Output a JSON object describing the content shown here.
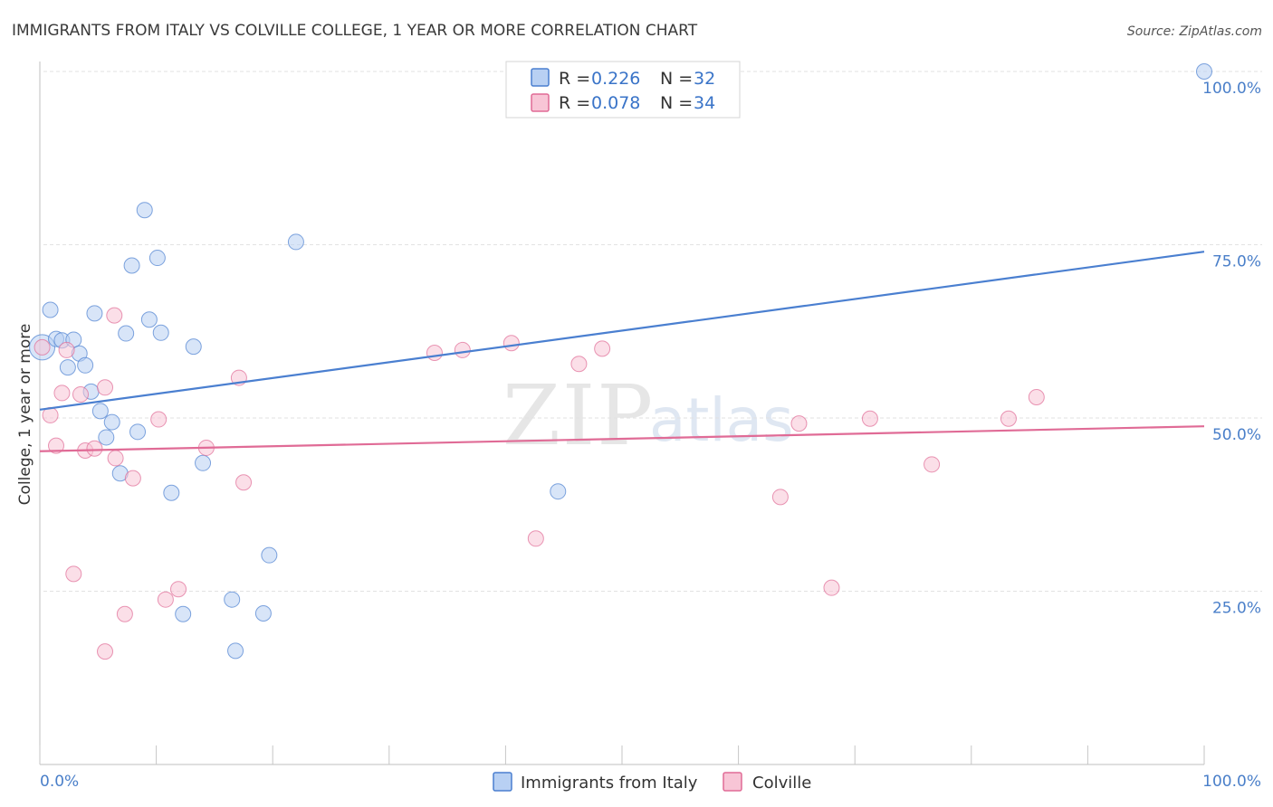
{
  "chart_data": {
    "type": "scatter",
    "title": "IMMIGRANTS FROM ITALY VS COLVILLE COLLEGE, 1 YEAR OR MORE CORRELATION CHART",
    "source": "Source: ZipAtlas.com",
    "xlabel": "",
    "ylabel": "College, 1 year or more",
    "xlim": [
      0,
      100
    ],
    "ylim": [
      0,
      102
    ],
    "x_tick_labels": [
      "0.0%",
      "100.0%"
    ],
    "y_ticks": [
      {
        "value": 25,
        "label": "25.0%"
      },
      {
        "value": 50,
        "label": "50.0%"
      },
      {
        "value": 75,
        "label": "75.0%"
      },
      {
        "value": 100,
        "label": "100.0%"
      }
    ],
    "grid": true,
    "legend_position": "top-center",
    "watermark": {
      "part1": "ZIP",
      "part2": "atlas"
    },
    "series": [
      {
        "name": "Immigrants from Italy",
        "color": "#4a7fd0",
        "fill": "#b8d0f3",
        "r_label": "R =",
        "r_value": "0.226",
        "n_label": "N =",
        "n_value": "32",
        "trend": {
          "y_at_0": 51.2,
          "y_at_100": 74.0
        },
        "points": [
          {
            "x": 0.2,
            "y": 60.2
          },
          {
            "x": 0.9,
            "y": 65.6
          },
          {
            "x": 1.4,
            "y": 61.4
          },
          {
            "x": 1.9,
            "y": 61.2
          },
          {
            "x": 2.4,
            "y": 57.3
          },
          {
            "x": 2.9,
            "y": 61.3
          },
          {
            "x": 3.4,
            "y": 59.3
          },
          {
            "x": 3.9,
            "y": 57.6
          },
          {
            "x": 4.4,
            "y": 53.8
          },
          {
            "x": 4.7,
            "y": 65.1
          },
          {
            "x": 5.2,
            "y": 51.0
          },
          {
            "x": 5.7,
            "y": 47.2
          },
          {
            "x": 6.2,
            "y": 49.4
          },
          {
            "x": 6.9,
            "y": 42.0
          },
          {
            "x": 7.4,
            "y": 62.2
          },
          {
            "x": 7.9,
            "y": 72.0
          },
          {
            "x": 8.4,
            "y": 48.0
          },
          {
            "x": 9.0,
            "y": 80.0
          },
          {
            "x": 9.4,
            "y": 64.2
          },
          {
            "x": 10.1,
            "y": 73.1
          },
          {
            "x": 10.4,
            "y": 62.3
          },
          {
            "x": 11.3,
            "y": 39.2
          },
          {
            "x": 12.3,
            "y": 21.7
          },
          {
            "x": 13.2,
            "y": 60.3
          },
          {
            "x": 14.0,
            "y": 43.5
          },
          {
            "x": 16.5,
            "y": 23.8
          },
          {
            "x": 16.8,
            "y": 16.4
          },
          {
            "x": 19.2,
            "y": 21.8
          },
          {
            "x": 19.7,
            "y": 30.2
          },
          {
            "x": 22.0,
            "y": 75.4
          },
          {
            "x": 44.5,
            "y": 39.4
          },
          {
            "x": 100.0,
            "y": 100.0
          }
        ]
      },
      {
        "name": "Colville",
        "color": "#e06b96",
        "fill": "#f8c5d6",
        "r_label": "R =",
        "r_value": "0.078",
        "n_label": "N =",
        "n_value": "34",
        "trend": {
          "y_at_0": 45.2,
          "y_at_100": 48.8
        },
        "points": [
          {
            "x": 0.2,
            "y": 60.2
          },
          {
            "x": 0.9,
            "y": 50.4
          },
          {
            "x": 1.4,
            "y": 46.0
          },
          {
            "x": 1.9,
            "y": 53.6
          },
          {
            "x": 2.3,
            "y": 59.8
          },
          {
            "x": 2.9,
            "y": 27.5
          },
          {
            "x": 3.5,
            "y": 53.4
          },
          {
            "x": 3.9,
            "y": 45.3
          },
          {
            "x": 4.7,
            "y": 45.6
          },
          {
            "x": 5.6,
            "y": 54.4
          },
          {
            "x": 5.6,
            "y": 16.3
          },
          {
            "x": 6.4,
            "y": 64.8
          },
          {
            "x": 6.5,
            "y": 44.2
          },
          {
            "x": 7.3,
            "y": 21.7
          },
          {
            "x": 8.0,
            "y": 41.3
          },
          {
            "x": 10.2,
            "y": 49.8
          },
          {
            "x": 10.8,
            "y": 23.8
          },
          {
            "x": 11.9,
            "y": 25.3
          },
          {
            "x": 14.3,
            "y": 45.7
          },
          {
            "x": 17.1,
            "y": 55.8
          },
          {
            "x": 17.5,
            "y": 40.7
          },
          {
            "x": 33.9,
            "y": 59.4
          },
          {
            "x": 36.3,
            "y": 59.8
          },
          {
            "x": 40.5,
            "y": 60.8
          },
          {
            "x": 42.6,
            "y": 32.6
          },
          {
            "x": 46.3,
            "y": 57.8
          },
          {
            "x": 48.3,
            "y": 60.0
          },
          {
            "x": 63.6,
            "y": 38.6
          },
          {
            "x": 65.2,
            "y": 49.2
          },
          {
            "x": 68.0,
            "y": 25.5
          },
          {
            "x": 71.3,
            "y": 49.9
          },
          {
            "x": 76.6,
            "y": 43.3
          },
          {
            "x": 83.2,
            "y": 49.9
          },
          {
            "x": 85.6,
            "y": 53.0
          }
        ]
      }
    ]
  }
}
